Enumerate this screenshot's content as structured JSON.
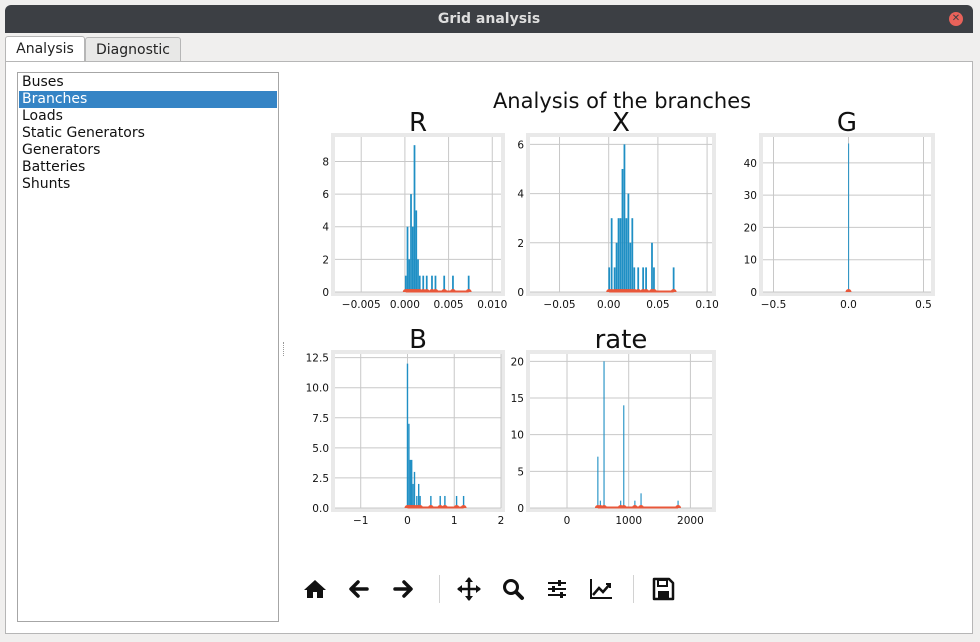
{
  "window": {
    "title": "Grid analysis",
    "close_icon": "close-icon"
  },
  "tabs": [
    {
      "label": "Analysis",
      "active": true
    },
    {
      "label": "Diagnostic",
      "active": false
    }
  ],
  "list": {
    "items": [
      "Buses",
      "Branches",
      "Loads",
      "Static Generators",
      "Generators",
      "Batteries",
      "Shunts"
    ],
    "selected": "Branches"
  },
  "figure": {
    "title": "Analysis of the branches"
  },
  "chart_data": [
    {
      "type": "bar",
      "title": "R",
      "xlim": [
        -0.008,
        0.011
      ],
      "ylim": [
        0,
        9.5
      ],
      "xticks": [
        -0.005,
        0.0,
        0.005,
        0.01
      ],
      "xtick_labels": [
        "−0.005",
        "0.000",
        "0.005",
        "0.010"
      ],
      "yticks": [
        0,
        2,
        4,
        6,
        8
      ],
      "ytick_labels": [
        "0",
        "2",
        "4",
        "6",
        "8"
      ],
      "bin_width": 0.0002,
      "bins": [
        [
          0.0001,
          1
        ],
        [
          0.0003,
          4
        ],
        [
          0.0005,
          2
        ],
        [
          0.0007,
          6
        ],
        [
          0.0009,
          4
        ],
        [
          0.0011,
          9
        ],
        [
          0.0013,
          5
        ],
        [
          0.0015,
          2
        ],
        [
          0.0017,
          1
        ],
        [
          0.0021,
          1
        ],
        [
          0.0025,
          1
        ],
        [
          0.0031,
          1
        ],
        [
          0.0035,
          1
        ],
        [
          0.0045,
          1
        ],
        [
          0.0055,
          1
        ],
        [
          0.0073,
          1
        ]
      ],
      "rug": [
        0.0001,
        0.0003,
        0.0005,
        0.0007,
        0.0009,
        0.0011,
        0.0013,
        0.0015,
        0.0017,
        0.0021,
        0.0025,
        0.0031,
        0.0035,
        0.0045,
        0.0055,
        0.0073
      ]
    },
    {
      "type": "bar",
      "title": "X",
      "xlim": [
        -0.08,
        0.105
      ],
      "ylim": [
        0,
        6.3
      ],
      "xticks": [
        -0.05,
        0.0,
        0.05,
        0.1
      ],
      "xtick_labels": [
        "−0.05",
        "0.00",
        "0.05",
        "0.10"
      ],
      "yticks": [
        0,
        2,
        4,
        6
      ],
      "ytick_labels": [
        "0",
        "2",
        "4",
        "6"
      ],
      "bin_width": 0.0018,
      "bins": [
        [
          0.0005,
          1
        ],
        [
          0.003,
          3
        ],
        [
          0.006,
          1
        ],
        [
          0.008,
          2
        ],
        [
          0.01,
          3
        ],
        [
          0.012,
          3
        ],
        [
          0.014,
          5
        ],
        [
          0.016,
          6
        ],
        [
          0.018,
          3
        ],
        [
          0.02,
          4
        ],
        [
          0.022,
          2
        ],
        [
          0.024,
          3
        ],
        [
          0.026,
          1
        ],
        [
          0.03,
          1
        ],
        [
          0.035,
          1
        ],
        [
          0.038,
          1
        ],
        [
          0.044,
          2
        ],
        [
          0.046,
          1
        ],
        [
          0.066,
          1
        ]
      ],
      "rug": [
        0.0005,
        0.003,
        0.006,
        0.008,
        0.01,
        0.012,
        0.014,
        0.016,
        0.018,
        0.02,
        0.022,
        0.024,
        0.026,
        0.03,
        0.035,
        0.038,
        0.044,
        0.046,
        0.066
      ]
    },
    {
      "type": "bar",
      "title": "G",
      "xlim": [
        -0.57,
        0.55
      ],
      "ylim": [
        0,
        48
      ],
      "xticks": [
        -0.5,
        0.0,
        0.5
      ],
      "xtick_labels": [
        "−0.5",
        "0.0",
        "0.5"
      ],
      "yticks": [
        0,
        10,
        20,
        30,
        40
      ],
      "ytick_labels": [
        "0",
        "10",
        "20",
        "30",
        "40"
      ],
      "bin_width": 0.005,
      "bins": [
        [
          0.0,
          46
        ]
      ],
      "rug": [
        0.0
      ]
    },
    {
      "type": "bar",
      "title": "B",
      "xlim": [
        -1.55,
        2.0
      ],
      "ylim": [
        0,
        12.8
      ],
      "xticks": [
        -1,
        0,
        1,
        2
      ],
      "xtick_labels": [
        "−1",
        "0",
        "1",
        "2"
      ],
      "yticks": [
        0,
        2.5,
        5.0,
        7.5,
        10.0,
        12.5
      ],
      "ytick_labels": [
        "0.0",
        "2.5",
        "5.0",
        "7.5",
        "10.0",
        "12.5"
      ],
      "bin_width": 0.03,
      "bins": [
        [
          0.0,
          12
        ],
        [
          0.03,
          7
        ],
        [
          0.06,
          4
        ],
        [
          0.09,
          4
        ],
        [
          0.12,
          2
        ],
        [
          0.15,
          3
        ],
        [
          0.2,
          1
        ],
        [
          0.24,
          2
        ],
        [
          0.27,
          1
        ],
        [
          0.5,
          1
        ],
        [
          0.7,
          1
        ],
        [
          0.8,
          1
        ],
        [
          1.05,
          1
        ],
        [
          1.2,
          1
        ]
      ],
      "rug": [
        0.0,
        0.03,
        0.06,
        0.09,
        0.12,
        0.15,
        0.2,
        0.24,
        0.27,
        0.5,
        0.7,
        0.8,
        1.05,
        1.2
      ]
    },
    {
      "type": "bar",
      "title": "rate",
      "xlim": [
        -600,
        2350
      ],
      "ylim": [
        0,
        21
      ],
      "xticks": [
        0,
        1000,
        2000
      ],
      "xtick_labels": [
        "0",
        "1000",
        "2000"
      ],
      "yticks": [
        0,
        5,
        10,
        15,
        20
      ],
      "ytick_labels": [
        "0",
        "5",
        "10",
        "15",
        "20"
      ],
      "bin_width": 18,
      "bins": [
        [
          500,
          7
        ],
        [
          540,
          1
        ],
        [
          600,
          20
        ],
        [
          870,
          1
        ],
        [
          920,
          14
        ],
        [
          1100,
          1
        ],
        [
          1200,
          2
        ],
        [
          1800,
          1
        ]
      ],
      "rug": [
        500,
        540,
        600,
        870,
        920,
        1100,
        1200,
        1800
      ]
    }
  ],
  "toolbar": {
    "buttons": [
      {
        "name": "home-button",
        "icon": "home-icon"
      },
      {
        "name": "back-button",
        "icon": "arrow-left-icon"
      },
      {
        "name": "forward-button",
        "icon": "arrow-right-icon"
      },
      {
        "name": "pan-button",
        "icon": "move-icon"
      },
      {
        "name": "zoom-button",
        "icon": "magnifier-icon"
      },
      {
        "name": "subplots-button",
        "icon": "sliders-icon"
      },
      {
        "name": "customize-button",
        "icon": "line-chart-icon"
      },
      {
        "name": "save-button",
        "icon": "floppy-disk-icon"
      }
    ]
  },
  "colors": {
    "bar": "#1f8fc4",
    "rug": "#e8573a",
    "grid": "#c8c8c8",
    "axes_frame": "#e9e9e9",
    "selection": "#3584c5"
  }
}
